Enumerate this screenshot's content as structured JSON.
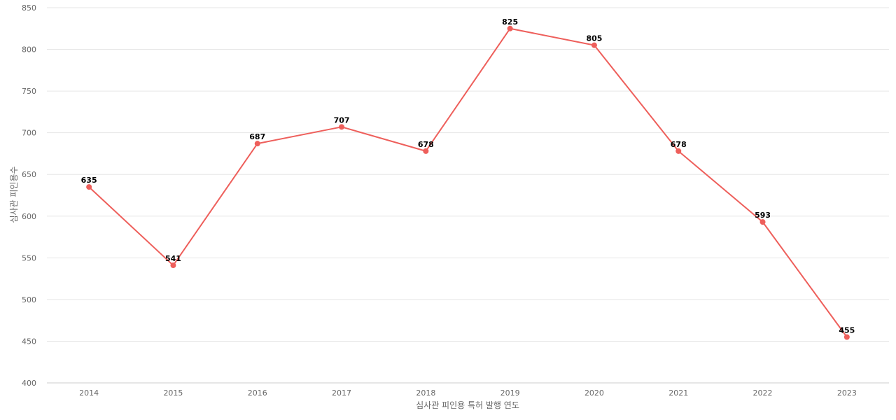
{
  "chart_data": {
    "type": "line",
    "title": "",
    "xlabel": "심사관 피인용 특허 발행 연도",
    "ylabel": "심사관 피인용수",
    "x": [
      "2014",
      "2015",
      "2016",
      "2017",
      "2018",
      "2019",
      "2020",
      "2021",
      "2022",
      "2023"
    ],
    "series": [
      {
        "values": [
          635,
          541,
          687,
          707,
          678,
          825,
          805,
          678,
          593,
          455
        ],
        "color": "#ee5f5b"
      }
    ],
    "ylim": [
      400,
      850
    ],
    "yticks": [
      400,
      450,
      500,
      550,
      600,
      650,
      700,
      750,
      800,
      850
    ],
    "grid": true,
    "legend": "none",
    "data_labels": true
  }
}
